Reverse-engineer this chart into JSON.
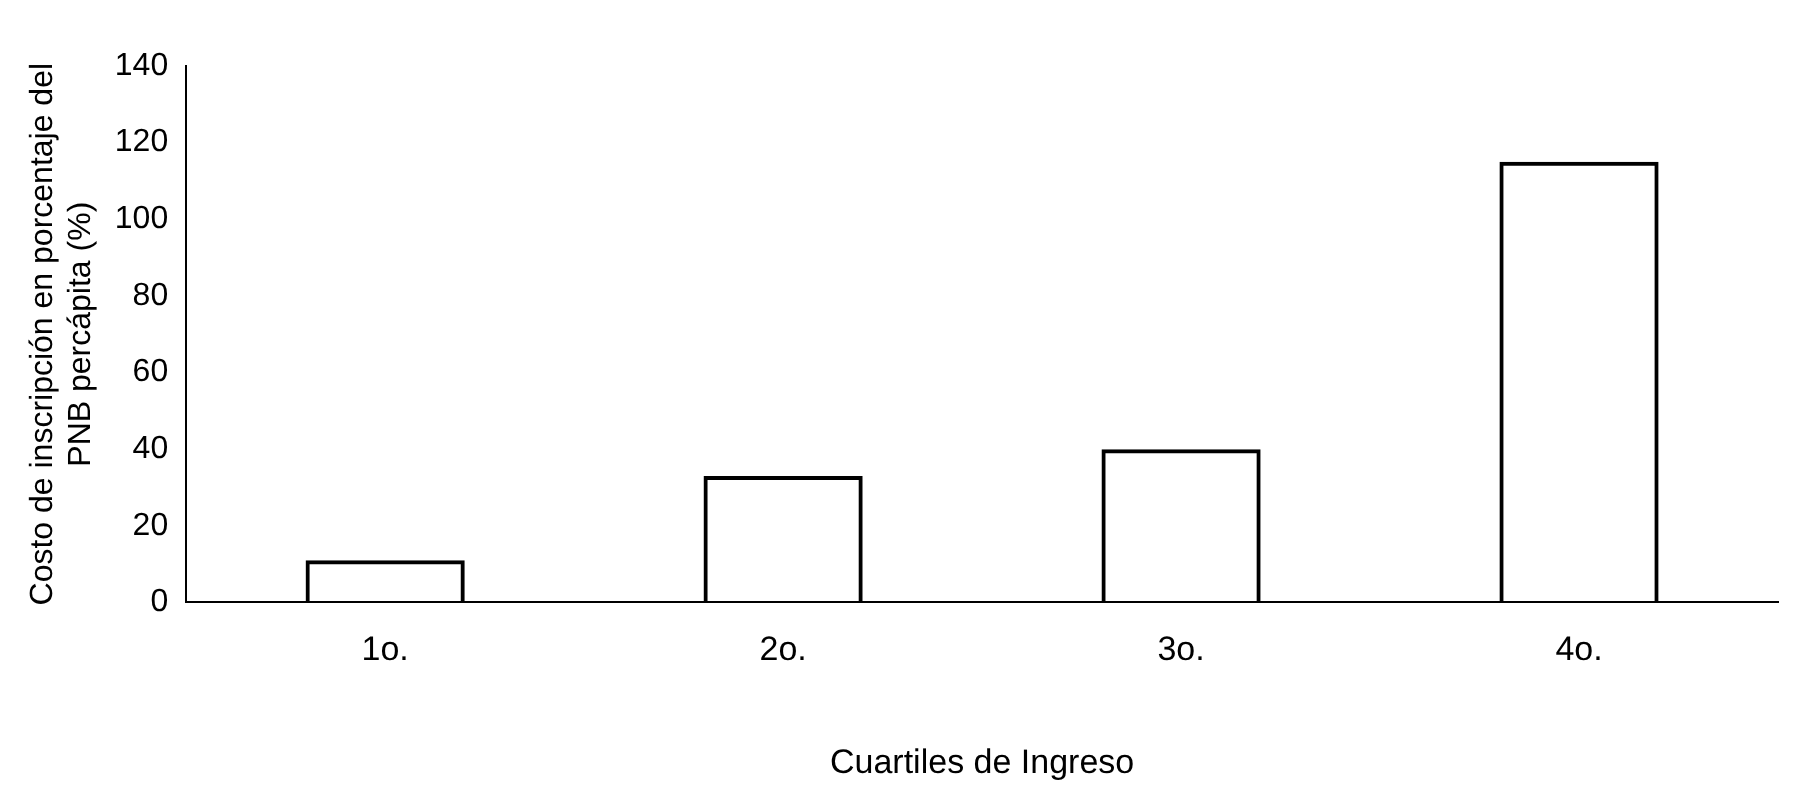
{
  "chart_data": {
    "type": "bar",
    "xlabel": "Cuartiles de Ingreso",
    "ylabel": "Costo de inscripción en porcentaje del PNB percápita (%)",
    "categories": [
      "1o.",
      "2o.",
      "3o.",
      "4o."
    ],
    "values": [
      11,
      33,
      40,
      115
    ],
    "color": "#000000",
    "ylim": [
      0,
      140
    ],
    "yticks": [
      0,
      20,
      40,
      60,
      80,
      100,
      120,
      140
    ],
    "grid": false,
    "legend": false
  }
}
